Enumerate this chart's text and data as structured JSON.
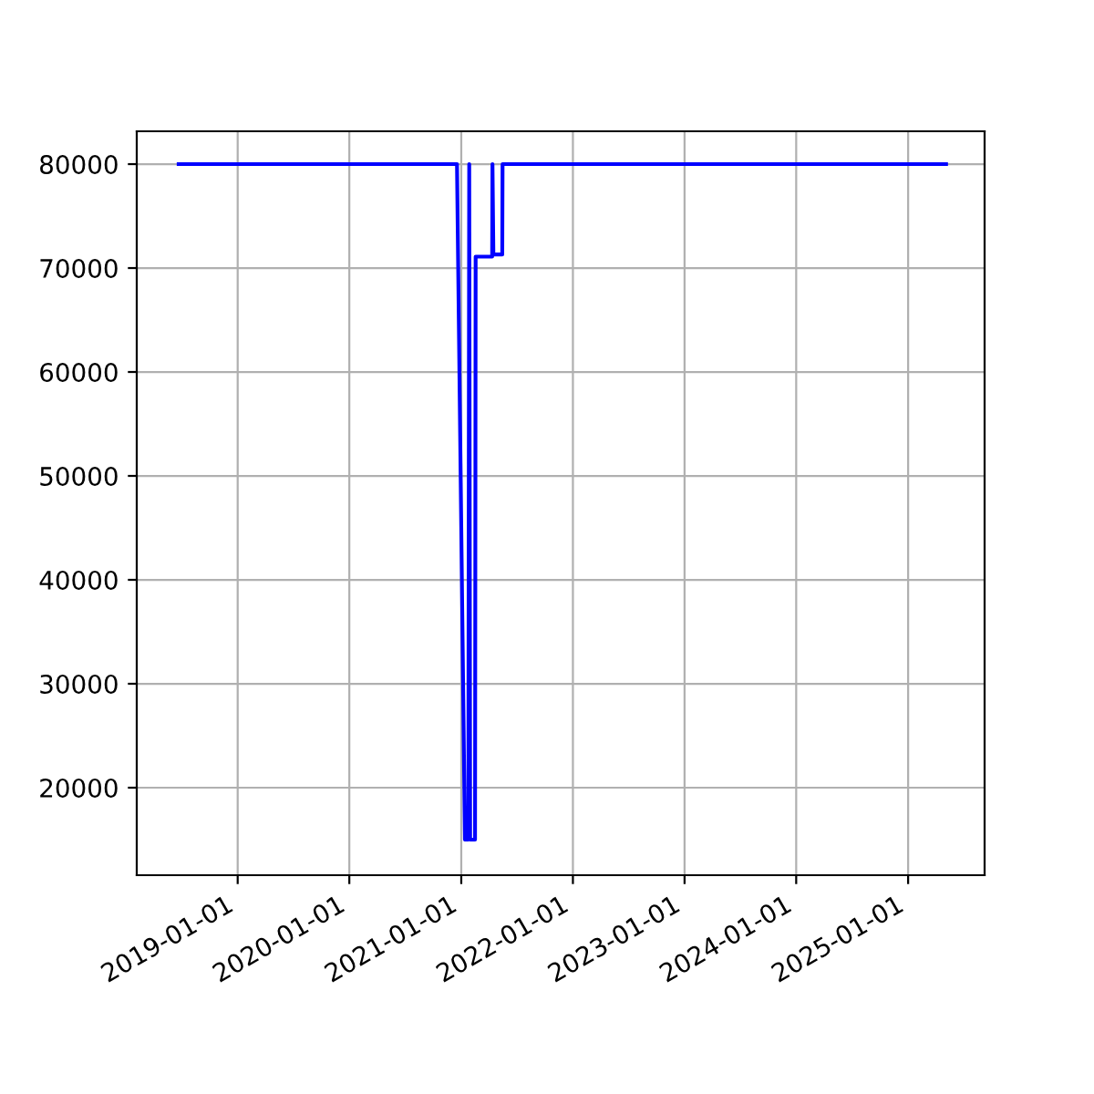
{
  "chart_data": {
    "type": "line",
    "x": [
      "2018-06-22",
      "2020-12-18",
      "2021-01-13",
      "2021-01-24",
      "2021-01-27",
      "2021-01-30",
      "2021-02-15",
      "2021-02-17",
      "2021-04-12",
      "2021-04-13",
      "2021-04-16",
      "2021-05-15",
      "2021-05-16",
      "2025-05-05"
    ],
    "series": [
      {
        "color": "#0000ff",
        "values": [
          80000,
          80000,
          15000,
          15000,
          80000,
          15000,
          15000,
          71100,
          71100,
          80000,
          71300,
          71300,
          80000,
          80000
        ]
      }
    ],
    "xlim": [
      "2018-02-05",
      "2025-09-08"
    ],
    "xticks": [
      {
        "value": "2019-01-01",
        "label": "2019-01-01"
      },
      {
        "value": "2020-01-01",
        "label": "2020-01-01"
      },
      {
        "value": "2021-01-01",
        "label": "2021-01-01"
      },
      {
        "value": "2022-01-01",
        "label": "2022-01-01"
      },
      {
        "value": "2023-01-01",
        "label": "2023-01-01"
      },
      {
        "value": "2024-01-01",
        "label": "2024-01-01"
      },
      {
        "value": "2025-01-01",
        "label": "2025-01-01"
      }
    ],
    "ylim": [
      11580,
      83160
    ],
    "yticks": [
      20000,
      30000,
      40000,
      50000,
      60000,
      70000,
      80000
    ],
    "grid": true,
    "line_style": "solid"
  }
}
